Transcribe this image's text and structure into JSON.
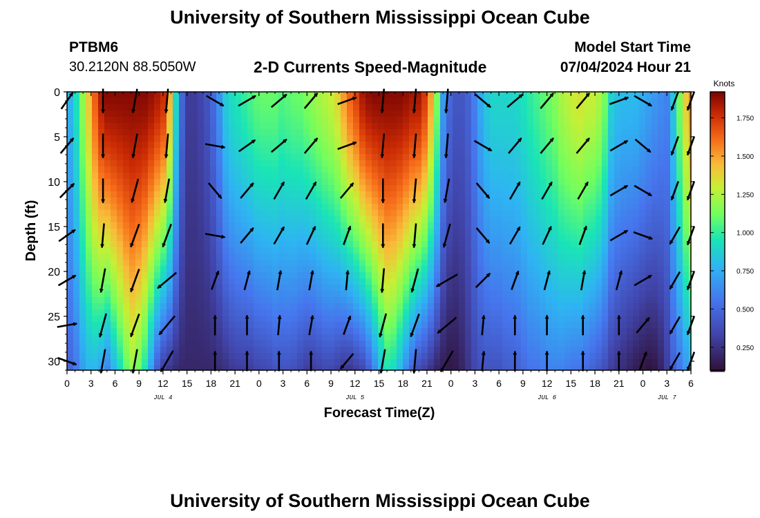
{
  "header": {
    "title": "University of Southern Mississippi Ocean Cube",
    "station_id": "PTBM6",
    "station_coords": "30.2120N  88.5050W",
    "chart_title": "2-D Currents Speed-Magnitude",
    "model_label": "Model Start Time",
    "model_time": "07/04/2024 Hour 21"
  },
  "footer": {
    "title": "University of Southern Mississippi Ocean Cube"
  },
  "chart_data": {
    "type": "heatmap",
    "title": "2-D Currents Speed-Magnitude",
    "xlabel": "Forecast Time(Z)",
    "ylabel": "Depth (ft)",
    "x_unit": "forecast hours from 07/04 00Z",
    "xlim": [
      0,
      78
    ],
    "ylim": [
      31,
      0
    ],
    "x_ticks": [
      0,
      3,
      6,
      9,
      12,
      15,
      18,
      21,
      24,
      27,
      30,
      33,
      36,
      39,
      42,
      45,
      48,
      51,
      54,
      57,
      60,
      63,
      66,
      69,
      72,
      75,
      78
    ],
    "x_tick_labels": [
      "0",
      "3",
      "6",
      "9",
      "12",
      "15",
      "18",
      "21",
      "0",
      "3",
      "6",
      "9",
      "12",
      "15",
      "18",
      "21",
      "0",
      "3",
      "6",
      "9",
      "12",
      "15",
      "18",
      "21",
      "0",
      "3",
      "6"
    ],
    "y_ticks": [
      0,
      5,
      10,
      15,
      20,
      25,
      30
    ],
    "y_tick_labels": [
      "0",
      "5",
      "10",
      "15",
      "20",
      "25",
      "30"
    ],
    "date_labels": [
      {
        "text": "JUL 4",
        "hour": 12
      },
      {
        "text": "JUL 5",
        "hour": 36
      },
      {
        "text": "JUL 6",
        "hour": 60
      },
      {
        "text": "JUL 7",
        "hour": 75
      }
    ],
    "colorbar": {
      "label": "Knots",
      "min": 0.1,
      "max": 1.92,
      "ticks": [
        0.25,
        0.5,
        0.75,
        1.0,
        1.25,
        1.5,
        1.75
      ],
      "tick_labels": [
        "0.250",
        "0.500",
        "0.750",
        "1.000",
        "1.250",
        "1.500",
        "1.750"
      ]
    },
    "speed_profile": {
      "hours": [
        0,
        1,
        2,
        3,
        4,
        5,
        6,
        7,
        8,
        9,
        10,
        11,
        12,
        13,
        14,
        15,
        16,
        17,
        18,
        19,
        20,
        21,
        22,
        23,
        24,
        25,
        26,
        27,
        28,
        29,
        30,
        31,
        32,
        33,
        34,
        35,
        36,
        37,
        38,
        39,
        40,
        41,
        42,
        43,
        44,
        45,
        46,
        47,
        48,
        49,
        50,
        51,
        52,
        53,
        54,
        55,
        56,
        57,
        58,
        59,
        60,
        61,
        62,
        63,
        64,
        65,
        66,
        67,
        68,
        69,
        70,
        71,
        72,
        73,
        74,
        75,
        76,
        77,
        78
      ],
      "surface": [
        0.7,
        0.9,
        1.2,
        1.5,
        1.8,
        1.9,
        1.9,
        1.9,
        1.9,
        1.9,
        1.9,
        1.85,
        1.8,
        1.4,
        0.6,
        0.3,
        0.3,
        0.35,
        0.45,
        0.65,
        0.9,
        0.95,
        1.0,
        1.05,
        1.1,
        1.1,
        1.1,
        1.05,
        1.1,
        1.1,
        1.15,
        1.2,
        1.25,
        1.3,
        1.4,
        1.6,
        1.7,
        1.85,
        1.9,
        1.9,
        1.9,
        1.9,
        1.9,
        1.85,
        1.85,
        1.7,
        1.3,
        0.7,
        0.45,
        0.4,
        0.45,
        0.6,
        0.8,
        0.9,
        0.9,
        0.9,
        0.9,
        0.95,
        1.0,
        1.05,
        1.1,
        1.15,
        1.25,
        1.3,
        1.35,
        1.3,
        1.3,
        1.2,
        0.9,
        0.8,
        0.8,
        0.8,
        0.75,
        0.7,
        0.65,
        0.6,
        0.9,
        1.3,
        1.6
      ],
      "bottom": [
        0.45,
        0.55,
        0.7,
        0.8,
        0.75,
        0.6,
        0.8,
        1.0,
        1.2,
        1.1,
        0.9,
        0.5,
        0.3,
        0.25,
        0.2,
        0.2,
        0.2,
        0.2,
        0.2,
        0.22,
        0.25,
        0.3,
        0.3,
        0.3,
        0.35,
        0.35,
        0.4,
        0.4,
        0.4,
        0.35,
        0.3,
        0.3,
        0.35,
        0.35,
        0.3,
        0.25,
        0.3,
        0.35,
        0.5,
        0.75,
        0.95,
        0.9,
        0.7,
        0.5,
        0.35,
        0.3,
        0.2,
        0.15,
        0.12,
        0.15,
        0.25,
        0.35,
        0.4,
        0.4,
        0.4,
        0.45,
        0.45,
        0.5,
        0.55,
        0.55,
        0.6,
        0.6,
        0.6,
        0.55,
        0.55,
        0.5,
        0.45,
        0.4,
        0.3,
        0.25,
        0.2,
        0.15,
        0.12,
        0.1,
        0.15,
        0.3,
        0.5,
        0.6,
        0.8
      ]
    },
    "vectors": {
      "hours": [
        0,
        4.5,
        8.5,
        12.5,
        18.5,
        22.5,
        26.5,
        30.5,
        35,
        39.5,
        43.5,
        47.5,
        52,
        56,
        60,
        64.5,
        69,
        72,
        76,
        78
      ],
      "depths": [
        1,
        6,
        11,
        16,
        21,
        26,
        30
      ],
      "directions_deg": [
        [
          35,
          180,
          190,
          185,
          120,
          60,
          50,
          40,
          70,
          185,
          185,
          185,
          130,
          50,
          40,
          40,
          70,
          120,
          200,
          200
        ],
        [
          40,
          180,
          190,
          185,
          100,
          55,
          50,
          40,
          70,
          185,
          185,
          185,
          120,
          40,
          40,
          40,
          60,
          130,
          200,
          200
        ],
        [
          45,
          180,
          195,
          190,
          140,
          40,
          30,
          30,
          40,
          180,
          185,
          190,
          140,
          30,
          30,
          30,
          60,
          120,
          200,
          200
        ],
        [
          55,
          185,
          200,
          200,
          100,
          40,
          30,
          25,
          20,
          180,
          185,
          195,
          140,
          30,
          25,
          20,
          60,
          110,
          210,
          200
        ],
        [
          60,
          190,
          200,
          230,
          20,
          15,
          10,
          10,
          5,
          185,
          195,
          240,
          45,
          20,
          15,
          10,
          15,
          60,
          210,
          200
        ],
        [
          80,
          195,
          200,
          220,
          0,
          0,
          5,
          10,
          20,
          195,
          200,
          230,
          5,
          0,
          0,
          0,
          0,
          40,
          210,
          200
        ],
        [
          110,
          190,
          190,
          210,
          0,
          0,
          0,
          0,
          220,
          190,
          185,
          210,
          5,
          0,
          0,
          0,
          0,
          20,
          210,
          200
        ]
      ],
      "magnitudes": [
        [
          0.9,
          1.1,
          1.1,
          1.1,
          0.9,
          0.9,
          0.9,
          0.9,
          0.9,
          1.1,
          1.1,
          1.1,
          0.9,
          0.9,
          0.9,
          0.9,
          0.9,
          0.9,
          0.9,
          0.9
        ],
        [
          0.9,
          1.1,
          1.1,
          1.1,
          0.9,
          0.9,
          0.9,
          0.9,
          0.9,
          1.1,
          1.1,
          1.1,
          0.9,
          0.9,
          0.9,
          0.9,
          0.9,
          0.9,
          0.9,
          0.9
        ],
        [
          0.9,
          1.1,
          1.1,
          1.1,
          0.9,
          0.9,
          0.9,
          0.9,
          0.9,
          1.1,
          1.1,
          1.1,
          0.9,
          0.9,
          0.9,
          0.9,
          0.9,
          0.9,
          0.9,
          0.9
        ],
        [
          0.9,
          1.1,
          1.1,
          1.1,
          0.9,
          0.9,
          0.9,
          0.9,
          0.9,
          1.1,
          1.1,
          1.1,
          0.9,
          0.9,
          0.9,
          0.9,
          0.9,
          0.9,
          0.9,
          0.9
        ],
        [
          0.9,
          1.1,
          1.1,
          1.1,
          0.9,
          0.9,
          0.9,
          0.9,
          0.9,
          1.1,
          1.1,
          1.1,
          0.9,
          0.9,
          0.9,
          0.9,
          0.9,
          0.9,
          0.9,
          0.9
        ],
        [
          0.9,
          1.1,
          1.1,
          1.1,
          0.9,
          0.9,
          0.9,
          0.9,
          0.9,
          1.1,
          1.1,
          1.1,
          0.9,
          0.9,
          0.9,
          0.9,
          0.9,
          0.9,
          0.9,
          0.9
        ],
        [
          0.9,
          1.1,
          1.1,
          1.1,
          0.9,
          0.9,
          0.9,
          0.9,
          0.9,
          1.1,
          1.1,
          1.1,
          0.9,
          0.9,
          0.9,
          0.9,
          0.9,
          0.9,
          0.9,
          0.9
        ]
      ]
    }
  }
}
